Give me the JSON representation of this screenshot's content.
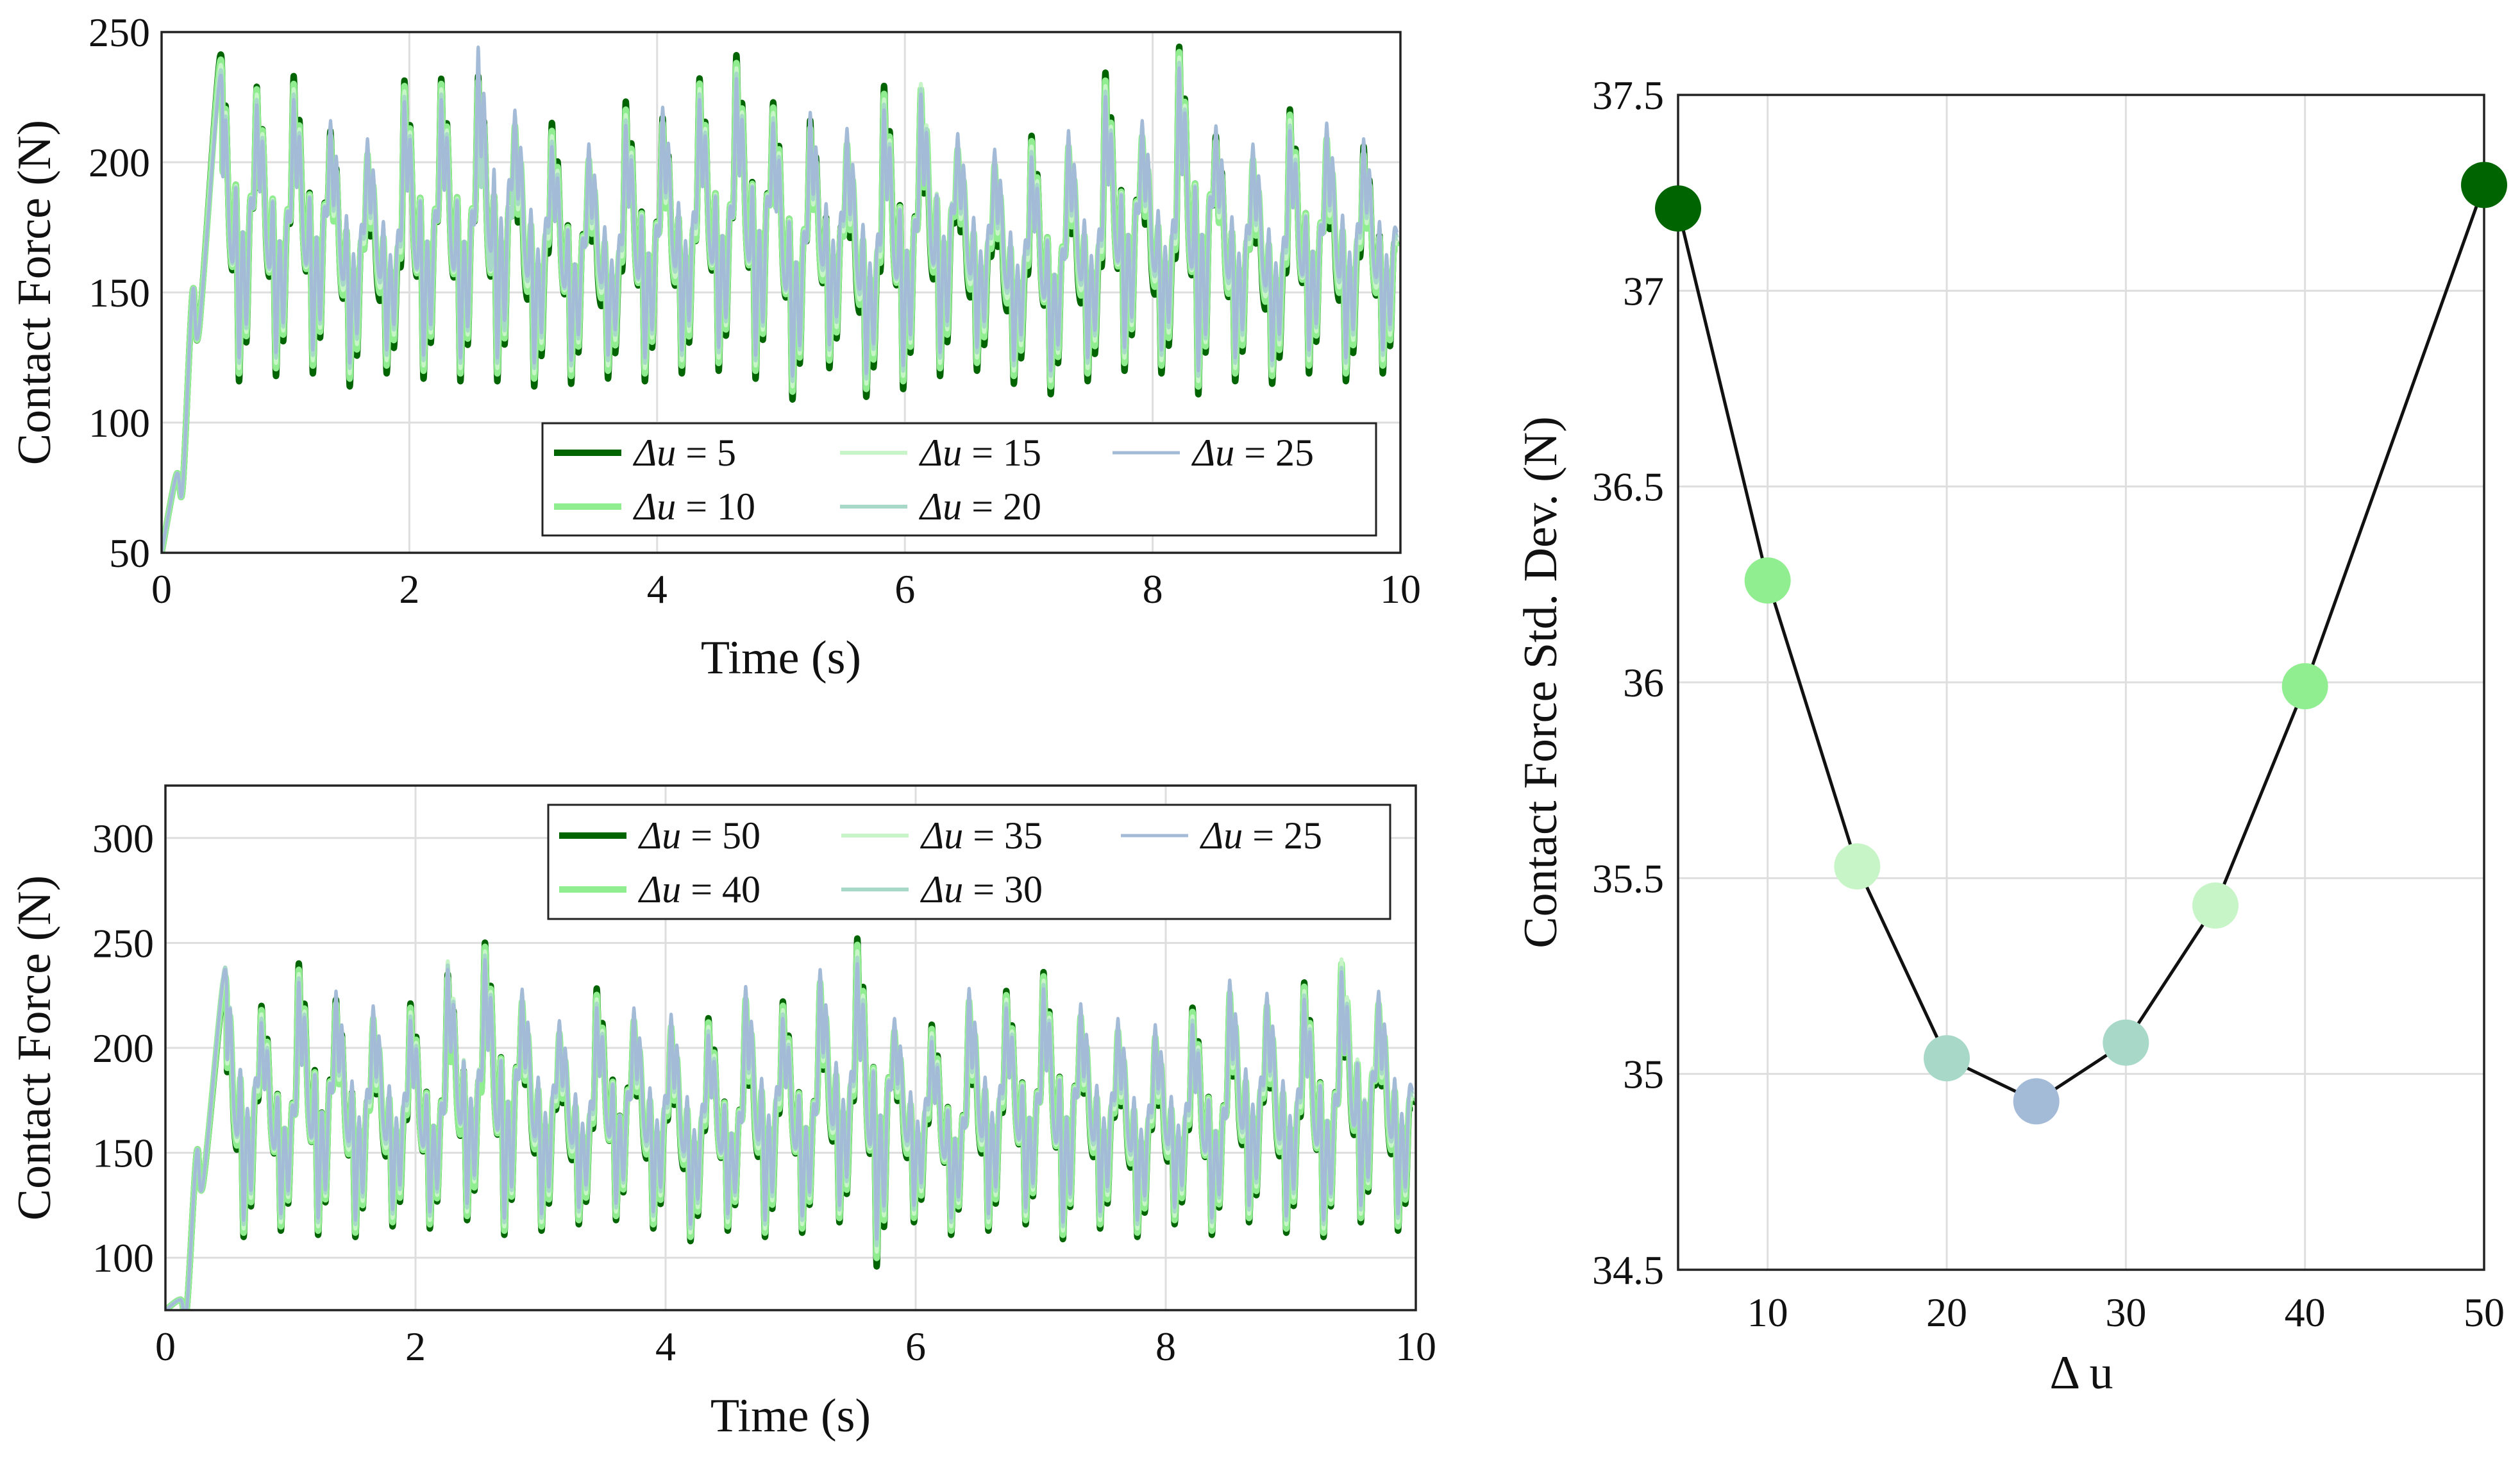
{
  "chart_data": [
    {
      "id": "top-left",
      "type": "line",
      "xlabel": "Time (s)",
      "ylabel": "Contact Force (N)",
      "xlim": [
        0,
        10
      ],
      "ylim": [
        50,
        250
      ],
      "xticks": [
        0,
        2,
        4,
        6,
        8,
        10
      ],
      "yticks": [
        50,
        100,
        150,
        200,
        250
      ],
      "xtick_labels": [
        "0",
        "2",
        "4",
        "6",
        "8",
        "10"
      ],
      "ytick_labels": [
        "50",
        "100",
        "150",
        "200",
        "250"
      ],
      "grid": true,
      "legend_position": "bottom-right",
      "start_values": [
        50,
        80,
        75,
        150,
        135
      ],
      "start_times": [
        0,
        0.12,
        0.17,
        0.25,
        0.3
      ],
      "series": [
        {
          "name": "Δu = 5",
          "label_var": "Δu",
          "label_val": "= 5",
          "color": "#006400",
          "width": 10,
          "peaks": [
            240,
            229,
            233,
            212,
            200,
            231,
            232,
            233,
            211,
            215,
            198,
            223,
            217,
            232,
            241,
            223,
            216,
            204,
            229,
            226,
            202,
            196,
            210,
            203,
            234,
            207,
            244,
            210,
            198,
            220,
            206,
            206
          ],
          "troughs": [
            116,
            118,
            119,
            114,
            119,
            117,
            116,
            116,
            114,
            115,
            117,
            116,
            119,
            120,
            117,
            109,
            121,
            110,
            113,
            118,
            120,
            115,
            111,
            116,
            120,
            119,
            111,
            116,
            115,
            119,
            116,
            119
          ]
        },
        {
          "name": "Δu = 10",
          "label_var": "Δu",
          "label_val": "= 10",
          "color": "#90EE90",
          "width": 10,
          "peaks": [
            238,
            228,
            230,
            210,
            203,
            229,
            230,
            231,
            214,
            212,
            201,
            220,
            215,
            230,
            238,
            221,
            213,
            207,
            226,
            228,
            205,
            199,
            208,
            206,
            231,
            210,
            242,
            208,
            201,
            218,
            209,
            203
          ],
          "troughs": [
            119,
            121,
            122,
            117,
            122,
            120,
            119,
            119,
            117,
            118,
            120,
            119,
            122,
            123,
            120,
            112,
            124,
            113,
            116,
            121,
            123,
            118,
            114,
            119,
            123,
            122,
            114,
            119,
            118,
            122,
            119,
            122
          ]
        },
        {
          "name": "Δu = 15",
          "label_var": "Δu",
          "label_val": "= 15",
          "color": "#C8F5C8",
          "width": 6,
          "peaks": [
            236,
            226,
            228,
            212,
            205,
            227,
            228,
            229,
            216,
            210,
            203,
            218,
            217,
            228,
            236,
            219,
            215,
            209,
            224,
            230,
            207,
            201,
            206,
            208,
            229,
            212,
            240,
            210,
            203,
            216,
            211,
            205
          ],
          "troughs": [
            121,
            123,
            124,
            119,
            124,
            122,
            121,
            121,
            119,
            120,
            122,
            121,
            124,
            125,
            122,
            114,
            126,
            115,
            118,
            123,
            125,
            120,
            116,
            121,
            125,
            124,
            116,
            121,
            120,
            124,
            121,
            124
          ]
        },
        {
          "name": "Δu = 20",
          "label_var": "Δu",
          "label_val": "= 20",
          "color": "#A8D8C8",
          "width": 6,
          "peaks": [
            234,
            224,
            226,
            214,
            207,
            225,
            226,
            227,
            218,
            208,
            205,
            216,
            219,
            226,
            234,
            217,
            217,
            211,
            222,
            228,
            209,
            203,
            204,
            210,
            227,
            214,
            238,
            212,
            205,
            214,
            213,
            207
          ],
          "troughs": [
            123,
            125,
            126,
            121,
            126,
            124,
            123,
            123,
            121,
            122,
            124,
            123,
            126,
            127,
            124,
            116,
            128,
            117,
            120,
            125,
            127,
            122,
            118,
            123,
            127,
            126,
            118,
            123,
            122,
            126,
            123,
            126
          ]
        },
        {
          "name": "Δu = 25",
          "label_var": "Δu",
          "label_val": "= 25",
          "color": "#A4BBD8",
          "width": 5,
          "peaks": [
            232,
            222,
            224,
            216,
            209,
            223,
            224,
            244,
            220,
            206,
            207,
            214,
            221,
            224,
            232,
            215,
            219,
            213,
            220,
            226,
            211,
            205,
            202,
            212,
            225,
            216,
            236,
            214,
            207,
            212,
            215,
            209
          ],
          "troughs": [
            125,
            127,
            128,
            123,
            128,
            126,
            125,
            125,
            123,
            124,
            126,
            125,
            128,
            129,
            126,
            118,
            130,
            119,
            122,
            127,
            129,
            124,
            120,
            125,
            129,
            128,
            120,
            125,
            124,
            128,
            125,
            128
          ]
        }
      ]
    },
    {
      "id": "bottom-left",
      "type": "line",
      "xlabel": "Time (s)",
      "ylabel": "Contact Force (N)",
      "xlim": [
        0,
        10
      ],
      "ylim": [
        75,
        325
      ],
      "xticks": [
        0,
        2,
        4,
        6,
        8,
        10
      ],
      "yticks": [
        100,
        150,
        200,
        250,
        300
      ],
      "xtick_labels": [
        "0",
        "2",
        "4",
        "6",
        "8",
        "10"
      ],
      "ytick_labels": [
        "100",
        "150",
        "200",
        "250",
        "300"
      ],
      "grid": true,
      "legend_position": "top-right",
      "start_values": [
        75,
        80,
        75,
        150,
        135
      ],
      "start_times": [
        0,
        0.12,
        0.17,
        0.25,
        0.3
      ],
      "series": [
        {
          "name": "Δu = 50",
          "label_var": "Δu",
          "label_val": "= 50",
          "color": "#006400",
          "width": 10,
          "peaks": [
            231,
            220,
            240,
            223,
            212,
            221,
            235,
            250,
            220,
            205,
            228,
            211,
            208,
            214,
            221,
            222,
            229,
            252,
            206,
            211,
            220,
            227,
            236,
            213,
            206,
            203,
            219,
            224,
            218,
            231,
            238,
            219
          ],
          "troughs": [
            110,
            113,
            111,
            110,
            115,
            114,
            118,
            111,
            113,
            116,
            118,
            114,
            108,
            113,
            110,
            112,
            117,
            96,
            117,
            111,
            113,
            116,
            109,
            114,
            110,
            116,
            111,
            117,
            112,
            110,
            117,
            113
          ]
        },
        {
          "name": "Δu = 40",
          "label_var": "Δu",
          "label_val": "= 40",
          "color": "#90EE90",
          "width": 10,
          "peaks": [
            233,
            218,
            237,
            221,
            214,
            219,
            233,
            248,
            222,
            207,
            225,
            213,
            210,
            212,
            223,
            220,
            231,
            249,
            208,
            209,
            222,
            225,
            234,
            215,
            208,
            205,
            217,
            226,
            220,
            229,
            240,
            221
          ],
          "troughs": [
            112,
            115,
            113,
            112,
            117,
            116,
            120,
            113,
            115,
            118,
            120,
            116,
            110,
            115,
            112,
            114,
            119,
            100,
            119,
            113,
            115,
            118,
            111,
            116,
            112,
            118,
            113,
            119,
            114,
            112,
            119,
            115
          ]
        },
        {
          "name": "Δu = 35",
          "label_var": "Δu",
          "label_val": "= 35",
          "color": "#C8F5C8",
          "width": 6,
          "peaks": [
            235,
            216,
            235,
            223,
            216,
            217,
            241,
            246,
            224,
            209,
            223,
            215,
            212,
            210,
            225,
            218,
            233,
            246,
            210,
            207,
            224,
            223,
            232,
            217,
            210,
            207,
            215,
            228,
            222,
            227,
            242,
            223
          ],
          "troughs": [
            114,
            117,
            115,
            114,
            119,
            118,
            122,
            115,
            117,
            120,
            122,
            118,
            112,
            117,
            114,
            116,
            121,
            103,
            121,
            115,
            117,
            120,
            113,
            118,
            114,
            120,
            115,
            121,
            116,
            114,
            121,
            117
          ]
        },
        {
          "name": "Δu = 30",
          "label_var": "Δu",
          "label_val": "= 30",
          "color": "#A8D8C8",
          "width": 6,
          "peaks": [
            237,
            214,
            233,
            225,
            218,
            215,
            239,
            244,
            226,
            211,
            221,
            217,
            214,
            208,
            227,
            216,
            235,
            243,
            212,
            205,
            226,
            221,
            230,
            219,
            212,
            209,
            213,
            230,
            224,
            225,
            238,
            225
          ],
          "troughs": [
            116,
            119,
            117,
            116,
            121,
            120,
            124,
            117,
            119,
            122,
            124,
            120,
            114,
            119,
            116,
            118,
            123,
            106,
            123,
            117,
            119,
            122,
            115,
            120,
            116,
            122,
            117,
            123,
            118,
            116,
            123,
            119
          ]
        },
        {
          "name": "Δu = 25",
          "label_var": "Δu",
          "label_val": "= 25",
          "color": "#A4BBD8",
          "width": 5,
          "peaks": [
            236,
            212,
            231,
            227,
            220,
            213,
            237,
            242,
            228,
            213,
            219,
            219,
            216,
            206,
            229,
            214,
            237,
            240,
            214,
            203,
            228,
            219,
            228,
            221,
            214,
            211,
            211,
            232,
            226,
            223,
            236,
            227
          ],
          "troughs": [
            118,
            121,
            119,
            118,
            123,
            122,
            126,
            119,
            121,
            124,
            126,
            122,
            116,
            121,
            118,
            120,
            125,
            109,
            125,
            119,
            121,
            124,
            117,
            122,
            118,
            124,
            119,
            125,
            120,
            118,
            125,
            121
          ]
        }
      ]
    },
    {
      "id": "right",
      "type": "line",
      "xlabel": "Δ u",
      "ylabel": "Contact Force Std. Dev. (N)",
      "xlim": [
        5,
        50
      ],
      "ylim": [
        34.5,
        37.5
      ],
      "xticks": [
        10,
        20,
        30,
        40,
        50
      ],
      "yticks": [
        34.5,
        35,
        35.5,
        36,
        36.5,
        37,
        37.5
      ],
      "xtick_labels": [
        "10",
        "20",
        "30",
        "40",
        "50"
      ],
      "ytick_labels": [
        "34.5",
        "35",
        "35.5",
        "36",
        "36.5",
        "37",
        "37.5"
      ],
      "grid": true,
      "x": [
        5,
        10,
        15,
        20,
        25,
        30,
        35,
        40,
        50
      ],
      "y": [
        37.21,
        36.26,
        35.53,
        35.04,
        34.93,
        35.08,
        35.43,
        35.99,
        37.27
      ],
      "point_colors": [
        "#006400",
        "#90EE90",
        "#C8F5C8",
        "#A8D8C8",
        "#A4BBD8",
        "#A8D8C8",
        "#C8F5C8",
        "#90EE90",
        "#006400"
      ]
    }
  ]
}
